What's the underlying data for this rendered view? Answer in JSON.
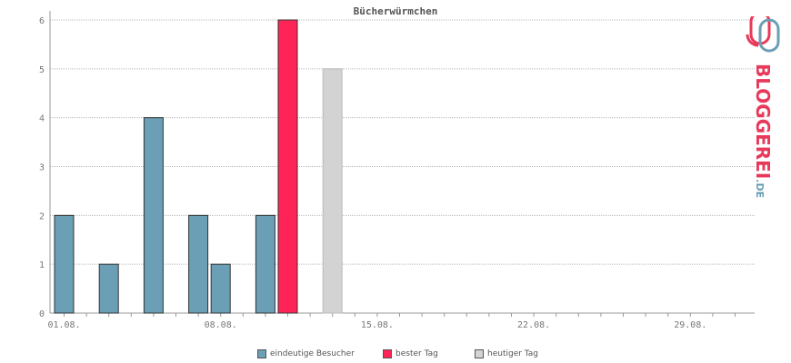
{
  "chart_data": {
    "type": "bar",
    "title": "Bücherwürmchen",
    "ylim": [
      0,
      6
    ],
    "yticks": [
      0,
      1,
      2,
      3,
      4,
      5,
      6
    ],
    "x_tick_labels": [
      "01.08.",
      "08.08.",
      "15.08.",
      "22.08.",
      "29.08."
    ],
    "x_tick_days": [
      1,
      8,
      15,
      22,
      29
    ],
    "x_range_days": [
      0,
      31
    ],
    "bars": [
      {
        "day": 0,
        "value": 2,
        "series": "eindeutige Besucher"
      },
      {
        "day": 2,
        "value": 1,
        "series": "eindeutige Besucher"
      },
      {
        "day": 4,
        "value": 4,
        "series": "eindeutige Besucher"
      },
      {
        "day": 6,
        "value": 2,
        "series": "eindeutige Besucher"
      },
      {
        "day": 7,
        "value": 1,
        "series": "eindeutige Besucher"
      },
      {
        "day": 9,
        "value": 2,
        "series": "eindeutige Besucher"
      },
      {
        "day": 10,
        "value": 6,
        "series": "bester Tag"
      },
      {
        "day": 12,
        "value": 5,
        "series": "heutiger Tag"
      }
    ],
    "series": [
      {
        "name": "eindeutige Besucher",
        "color": "#6a9fb5"
      },
      {
        "name": "bester Tag",
        "color": "#ff2457"
      },
      {
        "name": "heutiger Tag",
        "color": "#d3d3d3"
      }
    ],
    "grid": true,
    "legend_position": "bottom"
  },
  "brand": {
    "logo_text": "BLOGGEREI",
    "logo_suffix": ".DE"
  }
}
